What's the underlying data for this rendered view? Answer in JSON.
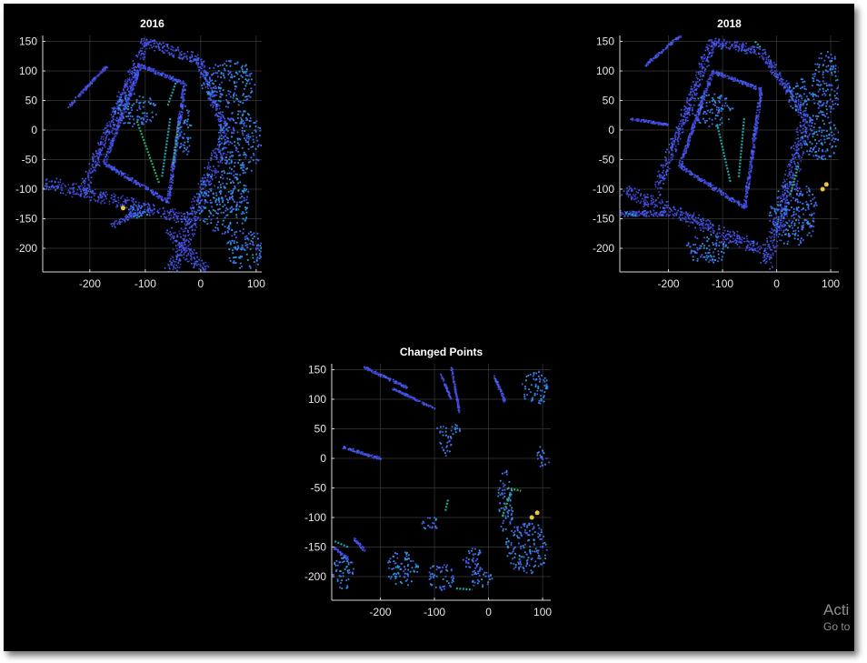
{
  "chart_data": [
    {
      "type": "scatter",
      "title": "2016",
      "xlabel": "",
      "ylabel": "",
      "xlim": [
        -285,
        110
      ],
      "ylim": [
        -240,
        160
      ],
      "xticks": [
        -200,
        -100,
        0,
        100
      ],
      "yticks": [
        150,
        100,
        50,
        0,
        -50,
        -100,
        -150,
        -200
      ],
      "grid": true,
      "colormap": "parula",
      "background": "#000000",
      "features": [
        {
          "kind": "segment",
          "from": [
            -282,
            -88
          ],
          "to": [
            -20,
            -150
          ],
          "width": 20
        },
        {
          "kind": "segment",
          "from": [
            -215,
            -105
          ],
          "to": [
            -100,
            150
          ],
          "width": 16
        },
        {
          "kind": "segment",
          "from": [
            -100,
            150
          ],
          "to": [
            -5,
            120
          ],
          "width": 18
        },
        {
          "kind": "segment",
          "from": [
            -5,
            120
          ],
          "to": [
            45,
            -5
          ],
          "width": 14
        },
        {
          "kind": "segment",
          "from": [
            45,
            -5
          ],
          "to": [
            -55,
            -240
          ],
          "width": 24
        },
        {
          "kind": "segment",
          "from": [
            -60,
            -170
          ],
          "to": [
            10,
            -240
          ],
          "width": 18
        },
        {
          "kind": "segment",
          "from": [
            -175,
            -55
          ],
          "to": [
            -110,
            110
          ],
          "width": 6
        },
        {
          "kind": "segment",
          "from": [
            -110,
            110
          ],
          "to": [
            -30,
            80
          ],
          "width": 6
        },
        {
          "kind": "segment",
          "from": [
            -30,
            80
          ],
          "to": [
            -60,
            -120
          ],
          "width": 6
        },
        {
          "kind": "segment",
          "from": [
            -60,
            -120
          ],
          "to": [
            -175,
            -55
          ],
          "width": 6
        },
        {
          "kind": "segment",
          "from": [
            -240,
            40
          ],
          "to": [
            -170,
            110
          ],
          "width": 4
        },
        {
          "kind": "segment",
          "from": [
            -160,
            -160
          ],
          "to": [
            -120,
            -140
          ],
          "width": 8
        },
        {
          "kind": "blob",
          "center": [
            -120,
            35
          ],
          "rx": 40,
          "ry": 28
        },
        {
          "kind": "blob",
          "center": [
            50,
            80
          ],
          "rx": 50,
          "ry": 40
        },
        {
          "kind": "blob",
          "center": [
            70,
            -20
          ],
          "rx": 40,
          "ry": 55
        },
        {
          "kind": "blob",
          "center": [
            40,
            -120
          ],
          "rx": 48,
          "ry": 55
        },
        {
          "kind": "blob",
          "center": [
            80,
            -200
          ],
          "rx": 35,
          "ry": 35
        },
        {
          "kind": "blob",
          "center": [
            -30,
            0
          ],
          "rx": 12,
          "ry": 45
        },
        {
          "kind": "blob",
          "center": [
            -110,
            -135
          ],
          "rx": 20,
          "ry": 14
        }
      ],
      "highlights": [
        {
          "from": [
            -115,
            15
          ],
          "to": [
            -75,
            -90
          ],
          "color": "#2ac27a"
        },
        {
          "from": [
            -55,
            20
          ],
          "to": [
            -70,
            -80
          ],
          "color": "#23b7b5"
        },
        {
          "from": [
            -40,
            10
          ],
          "to": [
            -50,
            -60
          ],
          "color": "#3fbf70"
        },
        {
          "from": [
            -45,
            80
          ],
          "to": [
            -60,
            40
          ],
          "color": "#23b7b5"
        }
      ],
      "hotspots": [
        {
          "at": [
            -140,
            -132
          ],
          "color": "#e6c83a"
        }
      ]
    },
    {
      "type": "scatter",
      "title": "2018",
      "xlabel": "",
      "ylabel": "",
      "xlim": [
        -290,
        115
      ],
      "ylim": [
        -240,
        160
      ],
      "xticks": [
        -200,
        -100,
        0,
        100
      ],
      "yticks": [
        150,
        100,
        50,
        0,
        -50,
        -100,
        -150,
        -200
      ],
      "grid": true,
      "colormap": "parula",
      "background": "#000000",
      "features": [
        {
          "kind": "segment",
          "from": [
            -287,
            -100
          ],
          "to": [
            -20,
            -205
          ],
          "width": 20
        },
        {
          "kind": "segment",
          "from": [
            -225,
            -105
          ],
          "to": [
            -120,
            150
          ],
          "width": 16
        },
        {
          "kind": "segment",
          "from": [
            -120,
            150
          ],
          "to": [
            -30,
            135
          ],
          "width": 16
        },
        {
          "kind": "segment",
          "from": [
            -30,
            135
          ],
          "to": [
            55,
            20
          ],
          "width": 14
        },
        {
          "kind": "segment",
          "from": [
            55,
            20
          ],
          "to": [
            -20,
            -230
          ],
          "width": 24
        },
        {
          "kind": "segment",
          "from": [
            -287,
            -140
          ],
          "to": [
            -210,
            -140
          ],
          "width": 10
        },
        {
          "kind": "segment",
          "from": [
            -270,
            20
          ],
          "to": [
            -200,
            10
          ],
          "width": 4
        },
        {
          "kind": "segment",
          "from": [
            -245,
            110
          ],
          "to": [
            -180,
            160
          ],
          "width": 4
        },
        {
          "kind": "segment",
          "from": [
            -180,
            -60
          ],
          "to": [
            -120,
            100
          ],
          "width": 6
        },
        {
          "kind": "segment",
          "from": [
            -120,
            100
          ],
          "to": [
            -30,
            70
          ],
          "width": 6
        },
        {
          "kind": "segment",
          "from": [
            -30,
            70
          ],
          "to": [
            -60,
            -130
          ],
          "width": 6
        },
        {
          "kind": "segment",
          "from": [
            -60,
            -130
          ],
          "to": [
            -180,
            -60
          ],
          "width": 6
        },
        {
          "kind": "blob",
          "center": [
            -120,
            35
          ],
          "rx": 38,
          "ry": 28
        },
        {
          "kind": "blob",
          "center": [
            90,
            80
          ],
          "rx": 30,
          "ry": 55
        },
        {
          "kind": "blob",
          "center": [
            80,
            -10
          ],
          "rx": 35,
          "ry": 40
        },
        {
          "kind": "blob",
          "center": [
            30,
            -140
          ],
          "rx": 45,
          "ry": 55
        },
        {
          "kind": "blob",
          "center": [
            -130,
            -200
          ],
          "rx": 40,
          "ry": 25
        },
        {
          "kind": "blob",
          "center": [
            40,
            60
          ],
          "rx": 20,
          "ry": 30
        }
      ],
      "highlights": [
        {
          "from": [
            40,
            -60
          ],
          "to": [
            25,
            -110
          ],
          "color": "#30c070"
        },
        {
          "from": [
            -110,
            10
          ],
          "to": [
            -85,
            -90
          ],
          "color": "#23b7b5"
        },
        {
          "from": [
            -60,
            20
          ],
          "to": [
            -70,
            -80
          ],
          "color": "#23b7b5"
        },
        {
          "from": [
            -40,
            150
          ],
          "to": [
            -30,
            140
          ],
          "color": "#23b7b5"
        },
        {
          "from": [
            -280,
            -140
          ],
          "to": [
            -260,
            -145
          ],
          "color": "#23b7b5"
        }
      ],
      "hotspots": [
        {
          "at": [
            85,
            -100
          ],
          "color": "#e6c83a"
        },
        {
          "at": [
            92,
            -92
          ],
          "color": "#e6c83a"
        }
      ]
    },
    {
      "type": "scatter",
      "title": "Changed Points",
      "xlabel": "",
      "ylabel": "",
      "xlim": [
        -290,
        115
      ],
      "ylim": [
        -240,
        160
      ],
      "xticks": [
        -200,
        -100,
        0,
        100
      ],
      "yticks": [
        150,
        100,
        50,
        0,
        -50,
        -100,
        -150,
        -200
      ],
      "grid": true,
      "colormap": "parula",
      "background": "#000000",
      "features": [
        {
          "kind": "segment",
          "from": [
            -230,
            155
          ],
          "to": [
            -150,
            120
          ],
          "width": 4
        },
        {
          "kind": "segment",
          "from": [
            -180,
            120
          ],
          "to": [
            -100,
            85
          ],
          "width": 3
        },
        {
          "kind": "segment",
          "from": [
            -90,
            145
          ],
          "to": [
            -70,
            100
          ],
          "width": 3
        },
        {
          "kind": "segment",
          "from": [
            -70,
            155
          ],
          "to": [
            -55,
            80
          ],
          "width": 3
        },
        {
          "kind": "segment",
          "from": [
            -270,
            20
          ],
          "to": [
            -200,
            0
          ],
          "width": 4
        },
        {
          "kind": "segment",
          "from": [
            -287,
            -150
          ],
          "to": [
            -260,
            -170
          ],
          "width": 5
        },
        {
          "kind": "segment",
          "from": [
            -250,
            -135
          ],
          "to": [
            -230,
            -155
          ],
          "width": 4
        },
        {
          "kind": "segment",
          "from": [
            10,
            140
          ],
          "to": [
            30,
            95
          ],
          "width": 4
        },
        {
          "kind": "blob",
          "center": [
            -75,
            50
          ],
          "rx": 25,
          "ry": 10
        },
        {
          "kind": "blob",
          "center": [
            -80,
            25
          ],
          "rx": 12,
          "ry": 20
        },
        {
          "kind": "blob",
          "center": [
            85,
            120
          ],
          "rx": 25,
          "ry": 30
        },
        {
          "kind": "blob",
          "center": [
            100,
            5
          ],
          "rx": 12,
          "ry": 20
        },
        {
          "kind": "blob",
          "center": [
            30,
            -70
          ],
          "rx": 15,
          "ry": 55
        },
        {
          "kind": "blob",
          "center": [
            70,
            -150
          ],
          "rx": 40,
          "ry": 45
        },
        {
          "kind": "blob",
          "center": [
            -270,
            -190
          ],
          "rx": 20,
          "ry": 30
        },
        {
          "kind": "blob",
          "center": [
            -160,
            -185
          ],
          "rx": 30,
          "ry": 30
        },
        {
          "kind": "blob",
          "center": [
            -90,
            -200
          ],
          "rx": 25,
          "ry": 25
        },
        {
          "kind": "blob",
          "center": [
            -30,
            -170
          ],
          "rx": 20,
          "ry": 20
        },
        {
          "kind": "blob",
          "center": [
            -110,
            -110
          ],
          "rx": 15,
          "ry": 15
        },
        {
          "kind": "blob",
          "center": [
            -15,
            -200
          ],
          "rx": 20,
          "ry": 20
        }
      ],
      "highlights": [
        {
          "from": [
            40,
            -60
          ],
          "to": [
            25,
            -100
          ],
          "color": "#30c070"
        },
        {
          "from": [
            35,
            -50
          ],
          "to": [
            60,
            -55
          ],
          "color": "#30c070"
        },
        {
          "from": [
            -75,
            -70
          ],
          "to": [
            -80,
            -90
          ],
          "color": "#23b7b5"
        },
        {
          "from": [
            -260,
            -150
          ],
          "to": [
            -285,
            -140
          ],
          "color": "#23b7b5"
        },
        {
          "from": [
            -60,
            -220
          ],
          "to": [
            -30,
            -222
          ],
          "color": "#23b7b5"
        }
      ],
      "hotspots": [
        {
          "at": [
            80,
            -100
          ],
          "color": "#e6c83a"
        },
        {
          "at": [
            90,
            -92
          ],
          "color": "#e6c83a"
        }
      ]
    }
  ],
  "watermark": {
    "line1": "Acti",
    "line2": "Go to"
  }
}
